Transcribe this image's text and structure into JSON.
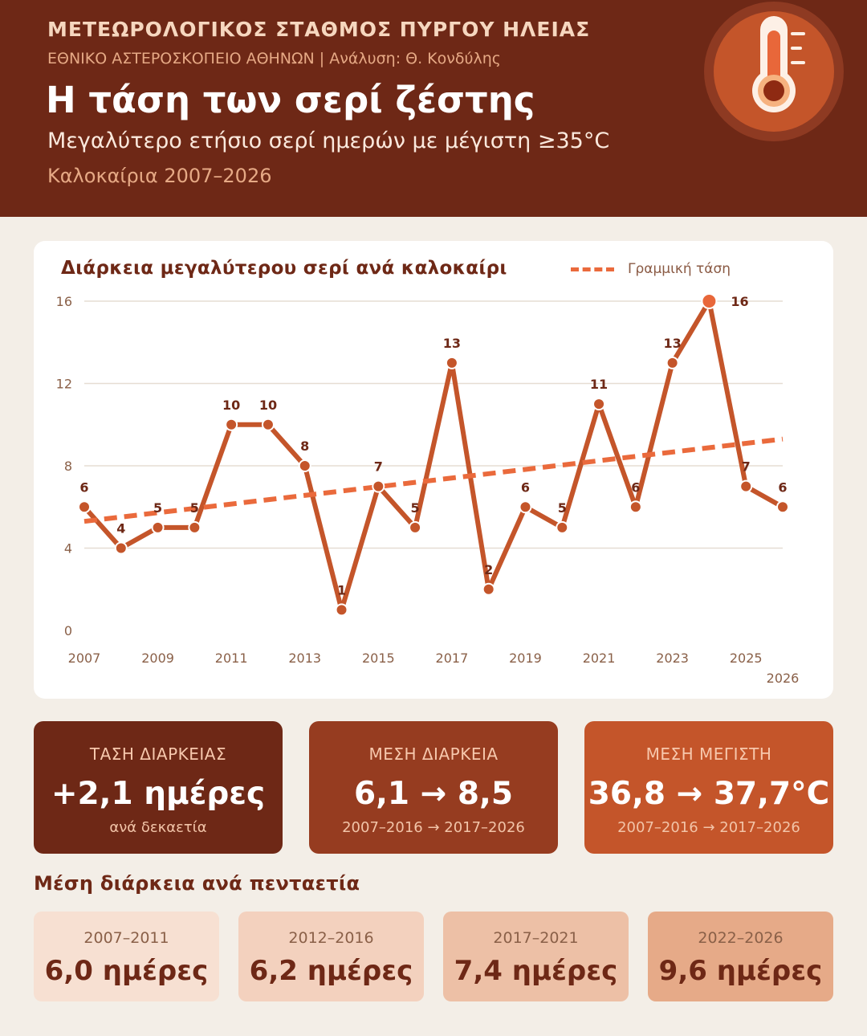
{
  "header": {
    "org": "ΜΕΤΕΩΡΟΛΟΓΙΚΟΣ ΣΤΑΘΜΟΣ ΠΥΡΓΟΥ ΗΛΕΙΑΣ",
    "subtitle": "ΕΘΝΙΚΟ ΑΣΤΕΡΟΣΚΟΠΕΙΟ ΑΘΗΝΩΝ | Ανάλυση: Θ. Κονδύλης",
    "title": "Η τάση των σερί ζέστης",
    "description": "Μεγαλύτερο ετήσιο σερί ημερών με μέγιστη ≥35°C",
    "period": "Καλοκαίρια 2007–2026",
    "icon": "thermometer-icon"
  },
  "colors": {
    "dark": "#6e2816",
    "line": "#c4552a",
    "trend": "#ea6a3c",
    "highlight": "#e8673a"
  },
  "chart_data": {
    "type": "line",
    "title": "Διάρκεια μεγαλύτερου σερί ανά καλοκαίρι",
    "x": [
      2007,
      2008,
      2009,
      2010,
      2011,
      2012,
      2013,
      2014,
      2015,
      2016,
      2017,
      2018,
      2019,
      2020,
      2021,
      2022,
      2023,
      2024,
      2025,
      2026
    ],
    "values": [
      6,
      4,
      5,
      5,
      10,
      10,
      8,
      1,
      7,
      5,
      13,
      2,
      6,
      5,
      11,
      6,
      13,
      16,
      7,
      6
    ],
    "x_tick_labels": [
      "2007",
      "2009",
      "2011",
      "2013",
      "2015",
      "2017",
      "2019",
      "2021",
      "2023",
      "2025",
      "2026"
    ],
    "y_ticks": [
      0,
      4,
      8,
      12,
      16
    ],
    "ylim": [
      0,
      16
    ],
    "trend": {
      "name": "Γραμμική τάση",
      "start": 5.3,
      "end": 9.3
    },
    "highlight_x": 2024,
    "grid": true,
    "legend": "top-right"
  },
  "stats": [
    {
      "label": "ΤΑΣΗ ΔΙΑΡΚΕΙΑΣ",
      "value": "+2,1 ημέρες",
      "note": "ανά δεκαετία",
      "color": "#6e2816"
    },
    {
      "label": "ΜΕΣΗ ΔΙΑΡΚΕΙΑ",
      "value": "6,1 → 8,5",
      "note": "2007–2016 → 2017–2026",
      "color": "#963c20"
    },
    {
      "label": "ΜΕΣΗ ΜΕΓΙΣΤΗ",
      "value": "36,8 → 37,7°C",
      "note": "2007–2016 → 2017–2026",
      "color": "#c4552a"
    }
  ],
  "periods": {
    "title": "Μέση διάρκεια ανά πενταετία",
    "items": [
      {
        "label": "2007–2011",
        "value": "6,0 ημέρες",
        "color": "#f7e0d2"
      },
      {
        "label": "2012–2016",
        "value": "6,2 ημέρες",
        "color": "#f3d1be"
      },
      {
        "label": "2017–2021",
        "value": "7,4 ημέρες",
        "color": "#edc0a6"
      },
      {
        "label": "2022–2026",
        "value": "9,6 ημέρες",
        "color": "#e6aa88"
      }
    ]
  }
}
